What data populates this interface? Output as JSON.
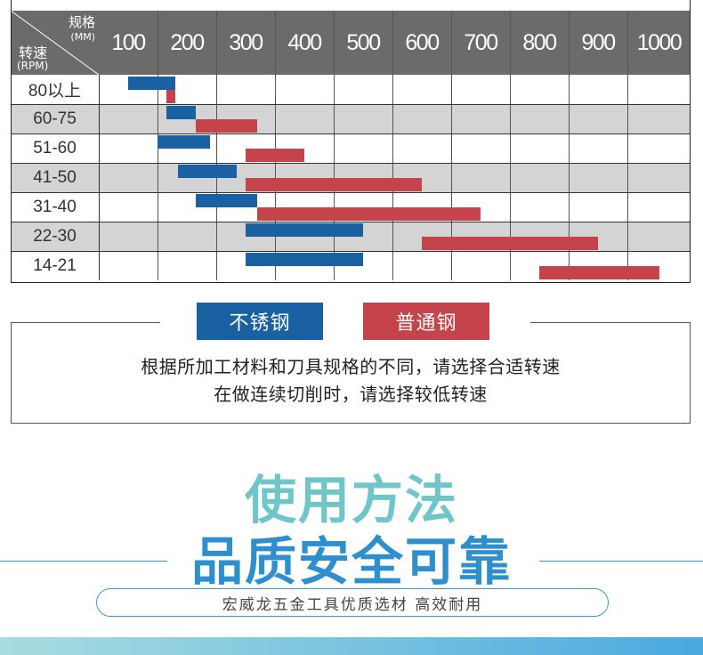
{
  "table": {
    "corner": {
      "spec_label": "规格",
      "mm_label": "(MM)",
      "speed_label": "转速",
      "rpm_label": "(RPM)"
    },
    "columns": [
      "100",
      "200",
      "300",
      "400",
      "500",
      "600",
      "700",
      "800",
      "900",
      "1000"
    ],
    "rows": [
      {
        "label": "80以上"
      },
      {
        "label": "60-75"
      },
      {
        "label": "51-60"
      },
      {
        "label": "41-50"
      },
      {
        "label": "31-40"
      },
      {
        "label": "22-30"
      },
      {
        "label": "14-21"
      }
    ]
  },
  "chart_data": {
    "type": "range-bar",
    "x_categories": [
      "100",
      "200",
      "300",
      "400",
      "500",
      "600",
      "700",
      "800",
      "900",
      "1000"
    ],
    "y_categories": [
      "80以上",
      "60-75",
      "51-60",
      "41-50",
      "31-40",
      "22-30",
      "14-21"
    ],
    "series": [
      {
        "name": "不锈钢",
        "color": "#1a61a3",
        "ranges": [
          [
            100,
            180
          ],
          [
            165,
            215
          ],
          [
            150,
            240
          ],
          [
            185,
            285
          ],
          [
            215,
            320
          ],
          [
            300,
            500
          ],
          [
            300,
            500
          ]
        ]
      },
      {
        "name": "普通钢",
        "color": "#c5434a",
        "ranges": [
          [
            165,
            180
          ],
          [
            215,
            320
          ],
          [
            300,
            400
          ],
          [
            300,
            600
          ],
          [
            320,
            700
          ],
          [
            600,
            900
          ],
          [
            800,
            1000
          ]
        ]
      }
    ]
  },
  "legend": {
    "stainless": "不锈钢",
    "carbon": "普通钢"
  },
  "notes": {
    "line1": "根据所加工材料和刀具规格的不同，请选择合适转速",
    "line2": "在做连续切削时，请选择较低转速"
  },
  "headline": {
    "line1": "使用方法",
    "line2": "品质安全可靠"
  },
  "tagline": "宏威龙五金工具优质选材 高效耐用",
  "colors": {
    "stainless": "#1a61a3",
    "carbon": "#c5434a",
    "header_gray": "#6b6b6b",
    "row_gray": "#d4d4d4",
    "headline_teal": "#6fc6c8",
    "headline_blue": "#2e8fcf"
  }
}
